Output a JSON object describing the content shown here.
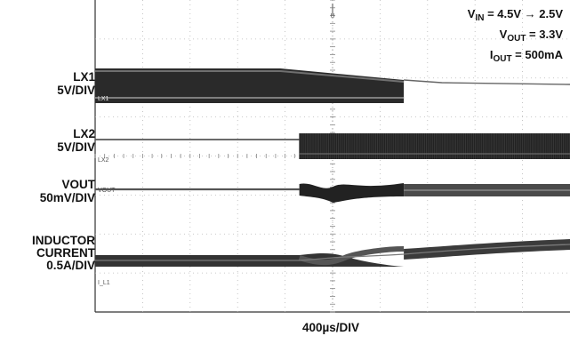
{
  "chart_data": {
    "type": "line",
    "title": "",
    "xlabel": "400µs/DIV",
    "ylabel": "",
    "grid": true,
    "x_divisions": 10,
    "y_divisions": 8,
    "trigger_marker": "U",
    "conditions": {
      "vin": {
        "sym": "V",
        "sub": "IN",
        "val": " = 4.5V → 2.5V"
      },
      "vout": {
        "sym": "V",
        "sub": "OUT",
        "val": " = 3.3V"
      },
      "iout": {
        "sym": "I",
        "sub": "OUT",
        "val": " = 500mA"
      }
    },
    "series": [
      {
        "name": "LX1",
        "scale": "5V/DIV",
        "marker": "LX1",
        "description": "switching node 1; switching band until about 6.5 div, then stops",
        "switching_until_div": 6.5,
        "band_fade_start_div": 3.9
      },
      {
        "name": "LX2",
        "scale": "5V/DIV",
        "marker": "LX2",
        "description": "switching node 2; idle until about 4.3 div, then switching",
        "switching_from_div": 4.3
      },
      {
        "name": "VOUT",
        "scale": "50mV/DIV",
        "marker": "VOUT",
        "description": "output voltage ripple increases during transition 4.3-6.5 div",
        "transition_div": [
          4.3,
          6.5
        ]
      },
      {
        "name": "INDUCTOR CURRENT",
        "scale": "0.5A/DIV",
        "marker": "I_L1",
        "description": "ripple band, crosses at about 5.3 div then ramps up",
        "crossover_div": 5.3
      }
    ]
  }
}
